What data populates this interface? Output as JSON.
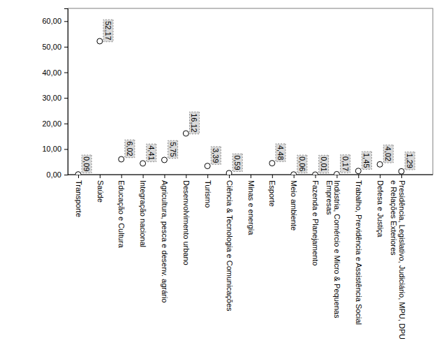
{
  "chart_data": {
    "type": "scatter",
    "categories": [
      "Transporte",
      "Saúde",
      "Educação e Cultura",
      "Integração nacional",
      "Agricultura, pesca e desenv. agrário",
      "Desenvolvimento urbano",
      "Turismo",
      "Ciência & Tecnologia e Comunicações",
      "Minas e energia",
      "Esporte",
      "Meio ambiente",
      "Fazenda e Planejamento",
      "Indústria, Comércio e Micro & Pequenas Empresas",
      "Trabalho, Previdência e Assistência Social",
      "Defesa e Justiça",
      "Presidência, Legislativo, Judiciário, MPU, DPU e Relações Exteriores"
    ],
    "values": [
      0.09,
      52.17,
      6.02,
      4.41,
      5.75,
      16.12,
      3.39,
      0.59,
      null,
      4.48,
      0.06,
      0.01,
      0.17,
      1.45,
      4.02,
      1.29
    ],
    "value_labels": [
      "0,09",
      "52,17",
      "6,02",
      "4,41",
      "5,75",
      "16,12",
      "3,39",
      "0,59",
      null,
      "4,48",
      "0,06",
      "0,01",
      "0,17",
      "1,45",
      "4,02",
      "1,29"
    ],
    "data_labels": true,
    "marker": "circle",
    "color": "#000000",
    "ylim": [
      0,
      65
    ],
    "yticks": [
      {
        "value": 0,
        "label": "0,00"
      },
      {
        "value": 10,
        "label": "10,00"
      },
      {
        "value": 20,
        "label": "20,00"
      },
      {
        "value": 30,
        "label": "30,00"
      },
      {
        "value": 40,
        "label": "40,00"
      },
      {
        "value": 50,
        "label": "50,00"
      },
      {
        "value": 60,
        "label": "60,00"
      }
    ],
    "grid": false
  }
}
